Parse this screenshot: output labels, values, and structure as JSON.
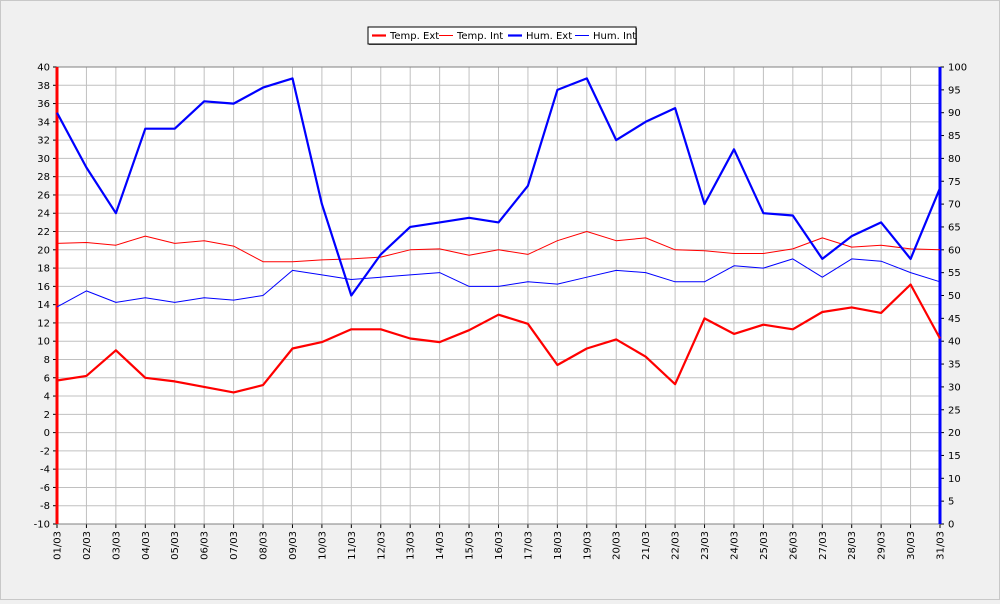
{
  "chart_data": {
    "type": "line",
    "title": "",
    "xlabel": "",
    "ylabel": "",
    "legend_position": "top-center",
    "grid": true,
    "categories": [
      "01/03",
      "02/03",
      "03/03",
      "04/03",
      "05/03",
      "06/03",
      "07/03",
      "08/03",
      "09/03",
      "10/03",
      "11/03",
      "12/03",
      "13/03",
      "14/03",
      "15/03",
      "16/03",
      "17/03",
      "18/03",
      "19/03",
      "20/03",
      "21/03",
      "22/03",
      "23/03",
      "24/03",
      "25/03",
      "26/03",
      "27/03",
      "28/03",
      "29/03",
      "30/03",
      "31/03"
    ],
    "y_left": {
      "min": -10,
      "max": 40,
      "step": 2,
      "color": "#ff0000"
    },
    "y_right": {
      "min": 0,
      "max": 100,
      "step": 5,
      "color": "#0000ff"
    },
    "series": [
      {
        "name": "Temp. Ext",
        "axis": "left",
        "color": "#ff0000",
        "thick": true,
        "values": [
          5.7,
          6.2,
          9.0,
          6.0,
          5.6,
          5.0,
          4.4,
          5.2,
          9.2,
          9.9,
          11.3,
          11.3,
          10.3,
          9.9,
          11.2,
          12.9,
          11.9,
          7.4,
          9.2,
          10.2,
          8.3,
          5.3,
          12.5,
          10.8,
          11.8,
          11.3,
          13.2,
          13.7,
          13.1,
          16.2,
          10.3
        ]
      },
      {
        "name": "Temp. Int",
        "axis": "left",
        "color": "#ff0000",
        "thick": false,
        "values": [
          20.7,
          20.8,
          20.5,
          21.5,
          20.7,
          21.0,
          20.4,
          18.7,
          18.7,
          18.9,
          19.0,
          19.2,
          20.0,
          20.1,
          19.4,
          20.0,
          19.5,
          21.0,
          22.0,
          21.0,
          21.3,
          20.0,
          19.9,
          19.6,
          19.6,
          20.1,
          21.3,
          20.3,
          20.5,
          20.1,
          20.0
        ]
      },
      {
        "name": "Hum. Ext",
        "axis": "right",
        "color": "#0000ff",
        "thick": true,
        "values": [
          90,
          78,
          68,
          86.5,
          86.5,
          92.5,
          92,
          95.5,
          97.5,
          70,
          50,
          59,
          65,
          66,
          67,
          66,
          74,
          95,
          97.5,
          84,
          88,
          91,
          70,
          82,
          68,
          67.5,
          58,
          63,
          66,
          58,
          73.5
        ]
      },
      {
        "name": "Hum. Int",
        "axis": "right",
        "color": "#0000ff",
        "thick": false,
        "values": [
          47.5,
          51,
          48.5,
          49.5,
          48.5,
          49.5,
          49,
          50,
          55.5,
          54.5,
          53.5,
          54,
          54.5,
          55,
          52,
          52,
          53,
          52.5,
          54,
          55.5,
          55,
          53,
          53,
          56.5,
          56,
          58,
          54,
          58,
          57.5,
          55,
          53
        ]
      }
    ]
  }
}
